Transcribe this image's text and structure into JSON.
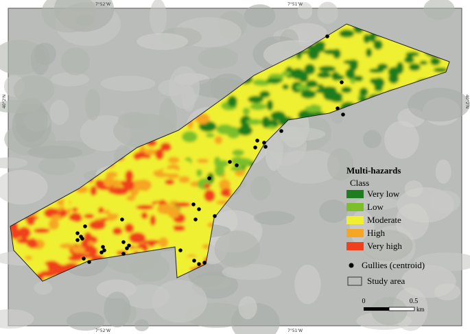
{
  "coordinates": {
    "top": [
      "7°52'W",
      "7°51'W"
    ],
    "bottom": [
      "7°52'W",
      "7°51'W"
    ],
    "left": "40°2'N",
    "right": "40°2'N"
  },
  "legend": {
    "title": "Multi-hazards",
    "subtitle": "Class",
    "classes": [
      {
        "name": "Very low",
        "color": "#1e7d1e"
      },
      {
        "name": "Low",
        "color": "#7cbf2a"
      },
      {
        "name": "Moderate",
        "color": "#f0f030"
      },
      {
        "name": "High",
        "color": "#f5a623"
      },
      {
        "name": "Very high",
        "color": "#f0401e"
      }
    ],
    "gullies": "Gullies (centroid)",
    "study_area": "Study area"
  },
  "scale_bar": {
    "labels": [
      0,
      0.5
    ],
    "unit": "km"
  }
}
